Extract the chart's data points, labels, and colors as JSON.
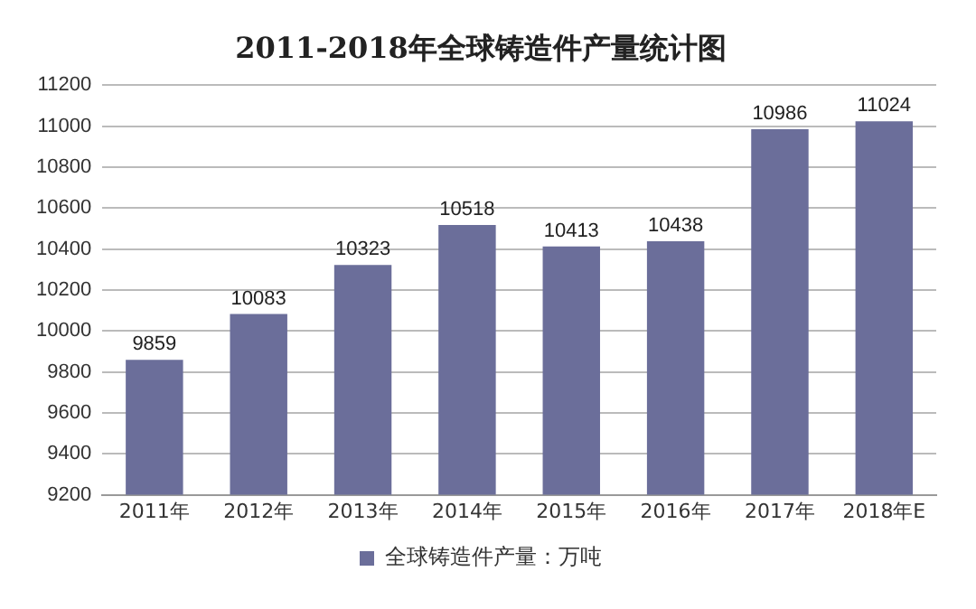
{
  "chart_data": {
    "type": "bar",
    "title": "2011-2018年全球铸造件产量统计图",
    "categories": [
      "2011年",
      "2012年",
      "2013年",
      "2014年",
      "2015年",
      "2016年",
      "2017年",
      "2018年E"
    ],
    "series": [
      {
        "name": "全球铸造件产量：万吨",
        "color": "#6b6e9a",
        "values": [
          9859,
          10083,
          10323,
          10518,
          10413,
          10438,
          10986,
          11024
        ]
      }
    ],
    "ylim": [
      9200,
      11200
    ],
    "yticks": [
      9200,
      9400,
      9600,
      9800,
      10000,
      10200,
      10400,
      10600,
      10800,
      11000,
      11200
    ],
    "grid": "y",
    "legend": "bottom",
    "data_labels": true
  }
}
